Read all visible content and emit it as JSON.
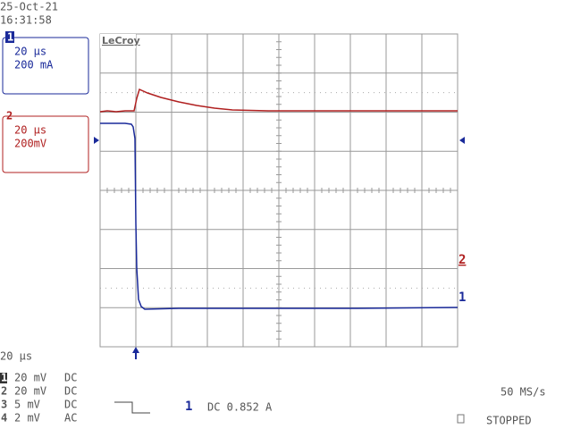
{
  "header": {
    "date": "25-Oct-21",
    "time": "16:31:58"
  },
  "logo": "LeCroy",
  "channels": [
    {
      "id": "1",
      "timebase": "20 µs",
      "scale": "200 mA",
      "marker": "1"
    },
    {
      "id": "2",
      "timebase": "20 µs",
      "scale": "200mV",
      "marker": "2"
    }
  ],
  "timebase": "20 µs",
  "inputs": [
    {
      "id": "1",
      "volts": "20 mV",
      "coupling": "DC"
    },
    {
      "id": "2",
      "volts": "20 mV",
      "coupling": "DC"
    },
    {
      "id": "3",
      "volts": "5 mV",
      "coupling": "DC"
    },
    {
      "id": "4",
      "volts": "2 mV",
      "coupling": "AC"
    }
  ],
  "trigger": {
    "source": "1",
    "level": "DC 0.852 A"
  },
  "sample_rate": "50 MS/s",
  "status": "STOPPED"
}
